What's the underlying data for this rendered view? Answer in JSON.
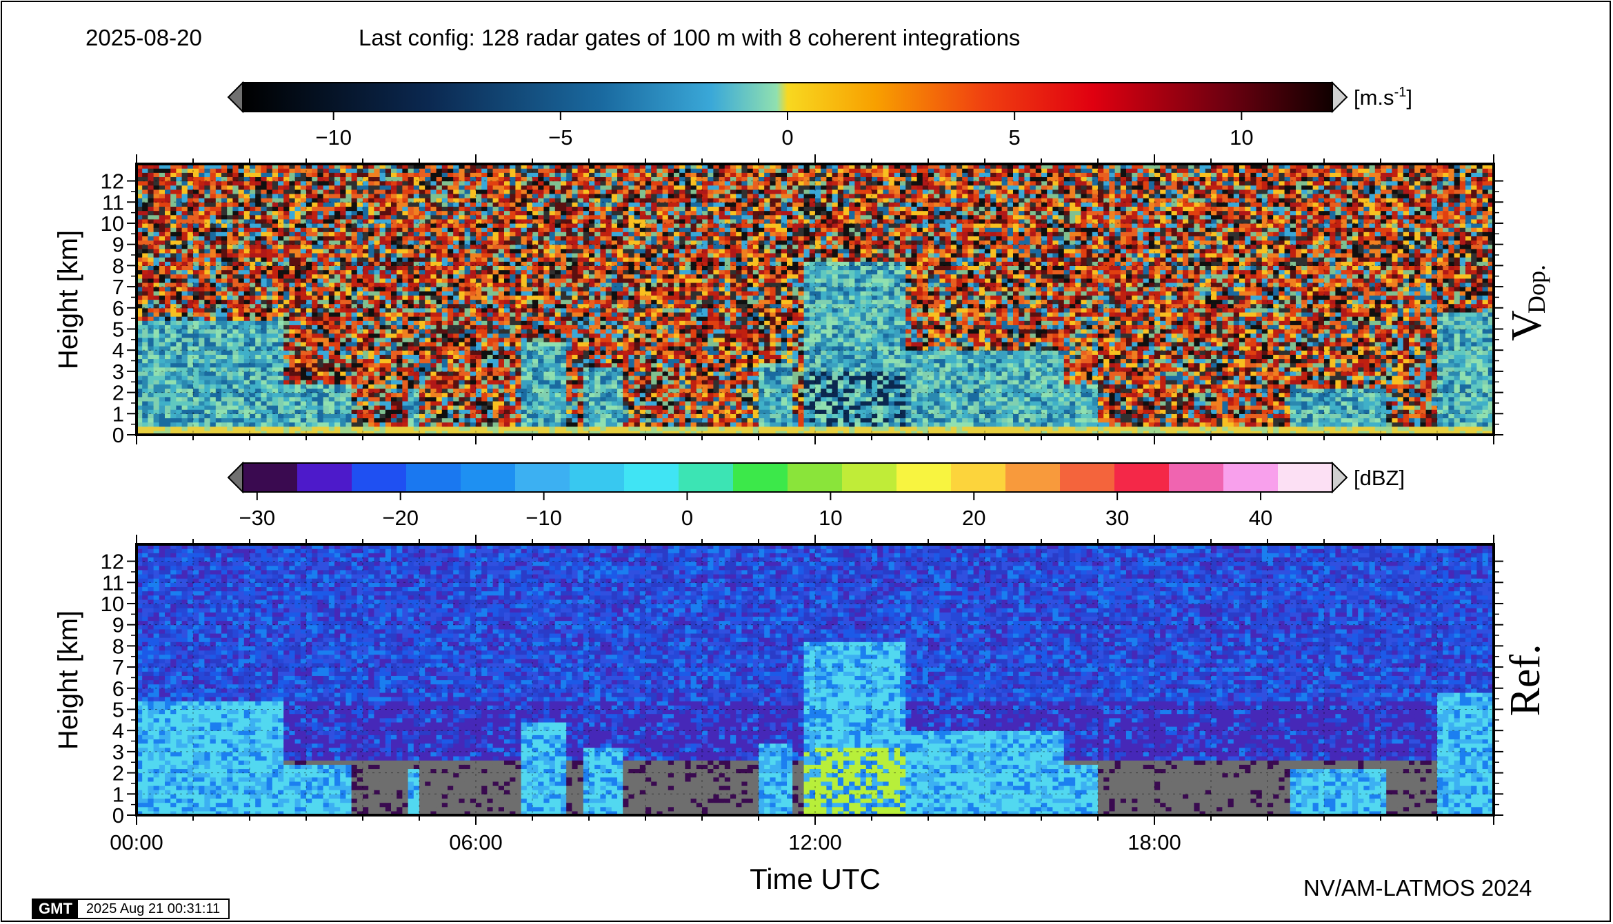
{
  "header": {
    "date": "2025-08-20",
    "config": "Last config: 128 radar gates of 100 m with 8 coherent integrations"
  },
  "footer": {
    "credit": "NV/AM-LATMOS 2024",
    "gmt_logo": "GMT",
    "gmt_timestamp": "2025 Aug 21 00:31:11"
  },
  "chart_data": [
    {
      "type": "heatmap",
      "panel_label": "V",
      "panel_label_sub": "Dop.",
      "ylabel": "Height [km]",
      "ylim": [
        0,
        12.8
      ],
      "yticks": [
        0,
        1,
        2,
        3,
        4,
        5,
        6,
        7,
        8,
        9,
        10,
        11,
        12
      ],
      "xlim_hours": [
        0,
        24
      ],
      "grid": true,
      "colorbar": {
        "unit_prefix": "[m.s",
        "unit_sup": "-1",
        "unit_suffix": "]",
        "range": [
          -12,
          12
        ],
        "ticks": [
          -10,
          -5,
          0,
          5,
          10
        ],
        "tick_labels": [
          "−10",
          "−5",
          "0",
          "5",
          "10"
        ],
        "triangles": true
      },
      "noise_threshold_km": 4.3,
      "cloud_events": [
        {
          "start": 0.0,
          "end": 2.6,
          "top": 5.4,
          "intensity": 0.8
        },
        {
          "start": 2.6,
          "end": 3.8,
          "top": 2.5,
          "intensity": 0.5
        },
        {
          "start": 4.8,
          "end": 5.0,
          "top": 2.2,
          "intensity": 0.4
        },
        {
          "start": 6.8,
          "end": 7.6,
          "top": 4.5,
          "intensity": 0.7
        },
        {
          "start": 7.9,
          "end": 8.6,
          "top": 3.3,
          "intensity": 0.6
        },
        {
          "start": 11.0,
          "end": 11.6,
          "top": 3.5,
          "intensity": 0.4
        },
        {
          "start": 11.8,
          "end": 13.6,
          "top": 8.2,
          "intensity": 1.0
        },
        {
          "start": 13.6,
          "end": 16.4,
          "top": 4.0,
          "intensity": 0.8
        },
        {
          "start": 16.4,
          "end": 17.0,
          "top": 2.4,
          "intensity": 0.5
        },
        {
          "start": 20.4,
          "end": 22.1,
          "top": 2.3,
          "intensity": 0.6
        },
        {
          "start": 23.0,
          "end": 24.0,
          "top": 5.8,
          "intensity": 0.9
        }
      ]
    },
    {
      "type": "heatmap",
      "panel_label": "Ref.",
      "ylabel": "Height [km]",
      "xlabel": "Time UTC",
      "ylim": [
        0,
        12.8
      ],
      "yticks": [
        0,
        1,
        2,
        3,
        4,
        5,
        6,
        7,
        8,
        9,
        10,
        11,
        12
      ],
      "xlim_hours": [
        0,
        24
      ],
      "xticks_hours": [
        0,
        6,
        12,
        18
      ],
      "xtick_labels": [
        "00:00",
        "06:00",
        "12:00",
        "18:00"
      ],
      "grid": true,
      "colorbar": {
        "unit": "[dBZ]",
        "range": [
          -31,
          45
        ],
        "ticks": [
          -30,
          -20,
          -10,
          0,
          10,
          20,
          30,
          40
        ],
        "tick_labels": [
          "−30",
          "−20",
          "−10",
          "0",
          "10",
          "20",
          "30",
          "40"
        ],
        "triangles": true
      },
      "colors": {
        "below_detection": "#6e6e6e",
        "noise": "#2648d8",
        "weak_echo": "#1c7ff0",
        "cloud": "#52d8f0",
        "strong_echo": "#b8ef3a"
      }
    }
  ]
}
